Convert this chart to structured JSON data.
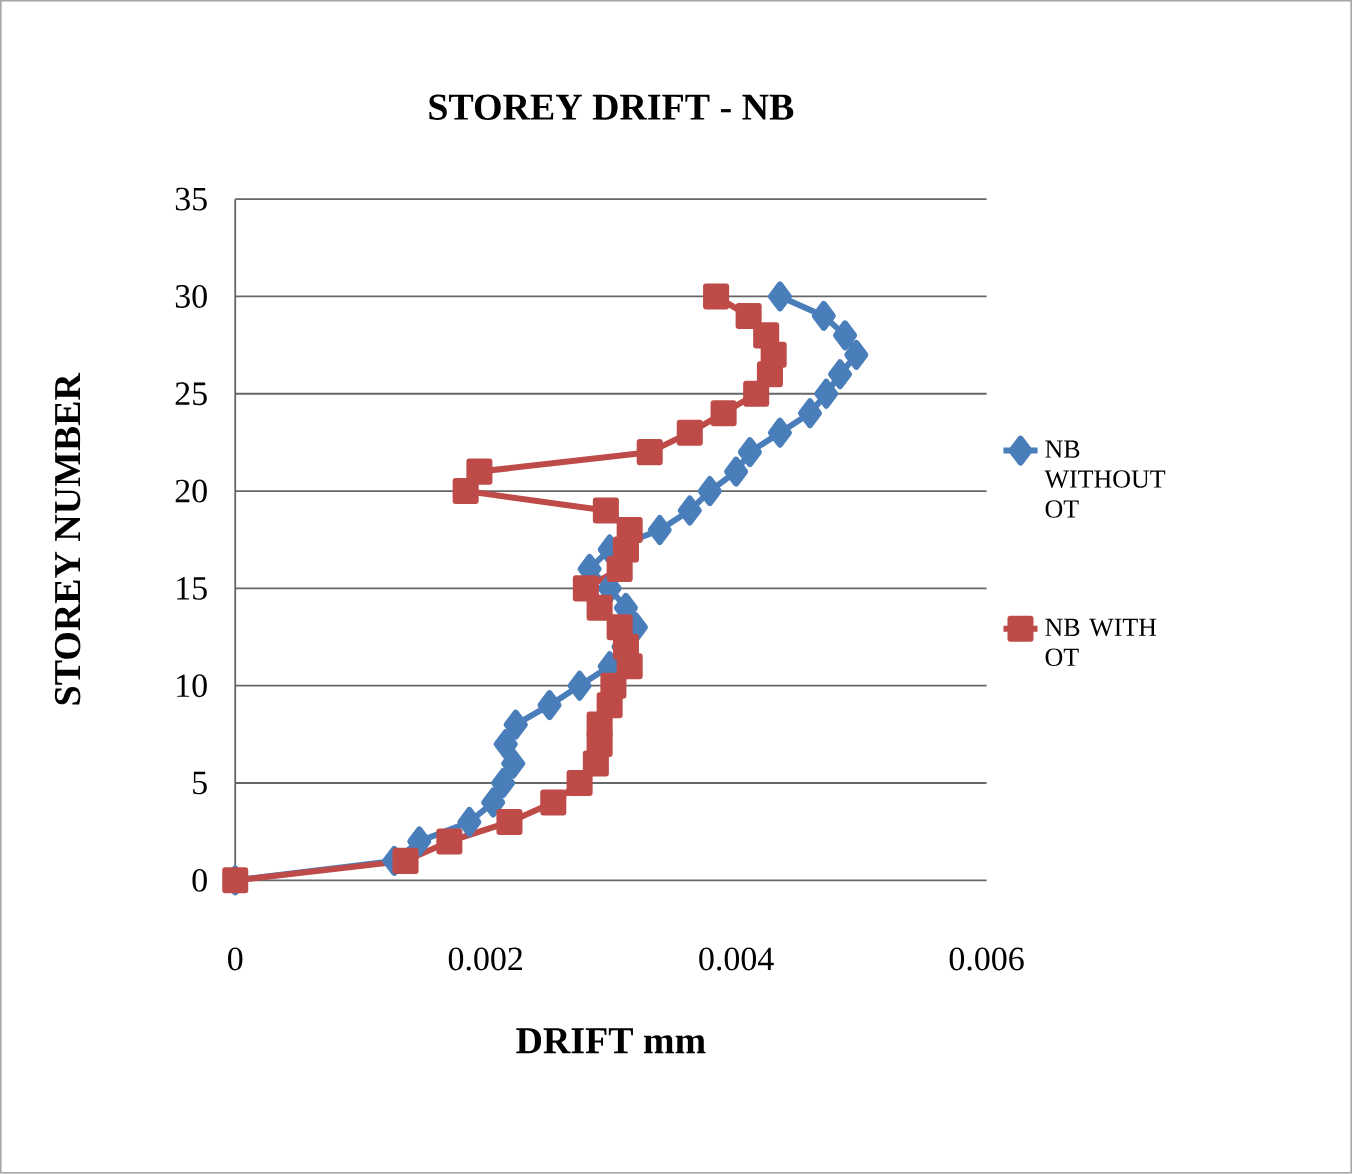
{
  "chart_data": {
    "type": "line",
    "title": "STOREY DRIFT - NB",
    "xlabel": "DRIFT mm",
    "ylabel": "STOREY NUMBER",
    "xlim": [
      0,
      0.006
    ],
    "xticks": [
      0,
      0.002,
      0.004,
      0.006
    ],
    "ylim": [
      0,
      35
    ],
    "yticks": [
      0,
      5,
      10,
      15,
      20,
      25,
      30,
      35
    ],
    "grid": "y",
    "legend": "right",
    "series": [
      {
        "name": "NB WITHOUT OT",
        "color": "#4a7ebb",
        "marker": "diamond",
        "x": [
          0,
          0.00127,
          0.00147,
          0.00187,
          0.00206,
          0.00214,
          0.00222,
          0.00216,
          0.00224,
          0.00251,
          0.00275,
          0.00299,
          0.0031,
          0.0032,
          0.00312,
          0.00299,
          0.00283,
          0.00299,
          0.00339,
          0.00363,
          0.00379,
          0.004,
          0.00411,
          0.00435,
          0.00459,
          0.00472,
          0.00483,
          0.00496,
          0.00487,
          0.0047,
          0.00435
        ],
        "values": [
          0,
          1,
          2,
          3,
          4,
          5,
          6,
          7,
          8,
          9,
          10,
          11,
          12,
          13,
          14,
          15,
          16,
          17,
          18,
          19,
          20,
          21,
          22,
          23,
          24,
          25,
          26,
          27,
          28,
          29,
          30
        ]
      },
      {
        "name": "NB WITH OT",
        "color": "#be4b48",
        "marker": "square",
        "x": [
          0,
          0.00136,
          0.00171,
          0.00219,
          0.00254,
          0.00275,
          0.00288,
          0.00291,
          0.00291,
          0.00299,
          0.00302,
          0.00315,
          0.00312,
          0.00307,
          0.00291,
          0.0028,
          0.00307,
          0.00312,
          0.00315,
          0.00296,
          0.00184,
          0.00195,
          0.00331,
          0.00363,
          0.0039,
          0.00416,
          0.00427,
          0.0043,
          0.00424,
          0.0041,
          0.00384
        ],
        "values": [
          0,
          1,
          2,
          3,
          4,
          5,
          6,
          7,
          8,
          9,
          10,
          11,
          12,
          13,
          14,
          15,
          16,
          17,
          18,
          19,
          20,
          21,
          22,
          23,
          24,
          25,
          26,
          27,
          28,
          29,
          30
        ]
      }
    ]
  }
}
